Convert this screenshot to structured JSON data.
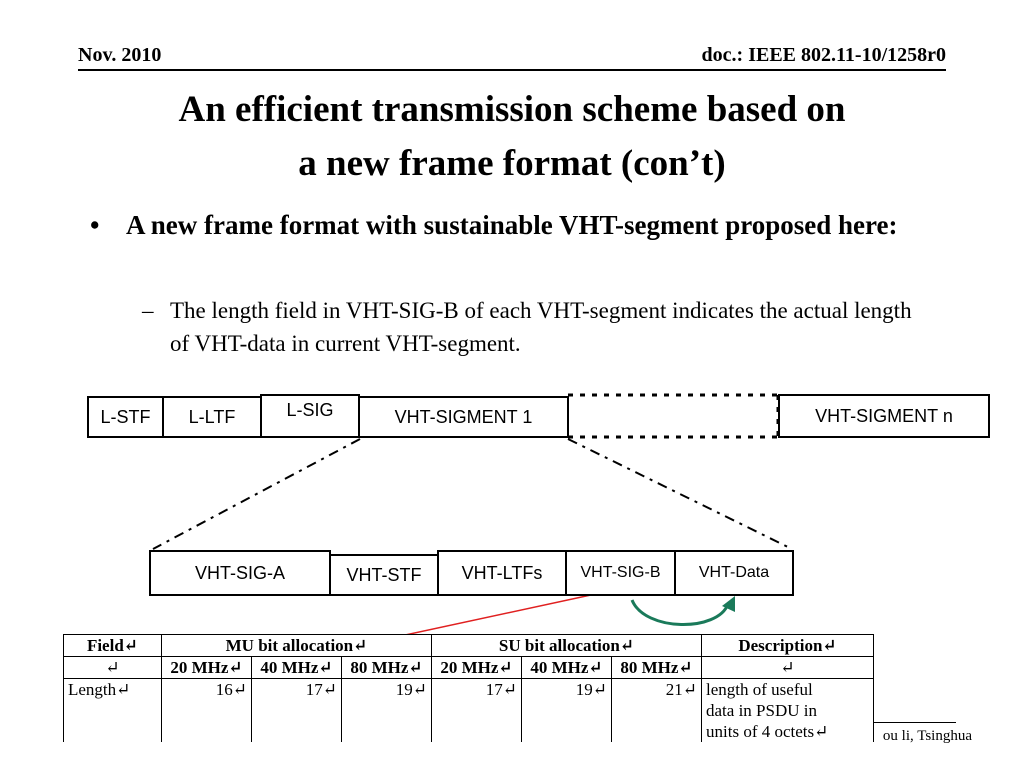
{
  "header": {
    "date": "Nov. 2010",
    "doc_id": "doc.: IEEE 802.11-10/1258r0"
  },
  "title": {
    "line1": "An efficient transmission scheme based on",
    "line2": "a new frame format (con’t)"
  },
  "bullet": {
    "symbol": "•",
    "text": "A new frame format with sustainable VHT-segment proposed here:"
  },
  "sub_bullet": {
    "symbol": "–",
    "text": "The length field in VHT-SIG-B of each VHT-segment  indicates the actual length of VHT-data in current VHT-segment."
  },
  "frame_top": [
    "L-STF",
    "L-LTF",
    "L-SIG",
    "VHT-SIGMENT 1",
    "VHT-SIGMENT n"
  ],
  "frame_detail": [
    "VHT-SIG-A",
    "VHT-STF",
    "VHT-LTFs",
    "VHT-SIG-B",
    "VHT-Data"
  ],
  "table": {
    "header1": {
      "field": "Field↵",
      "mu": "MU bit allocation↵",
      "su": "SU bit allocation↵",
      "desc": "Description↵"
    },
    "header2": {
      "field": "↵",
      "mu": [
        "20 MHz↵",
        "40 MHz↵",
        "80 MHz↵"
      ],
      "su": [
        "20 MHz↵",
        "40 MHz↵",
        "80 MHz↵"
      ],
      "desc": "↵"
    },
    "row": {
      "field": "Length↵",
      "mu": [
        "16↵",
        "17↵",
        "19↵"
      ],
      "su": [
        "17↵",
        "19↵",
        "21↵"
      ],
      "desc_lines": [
        "length of useful",
        "data in PSDU in",
        "units of 4 octets↵"
      ]
    }
  },
  "footer": {
    "author": "ou li, Tsinghua"
  },
  "colors": {
    "arrow_red": "#e02020",
    "loop_green": "#1a7a5a"
  }
}
